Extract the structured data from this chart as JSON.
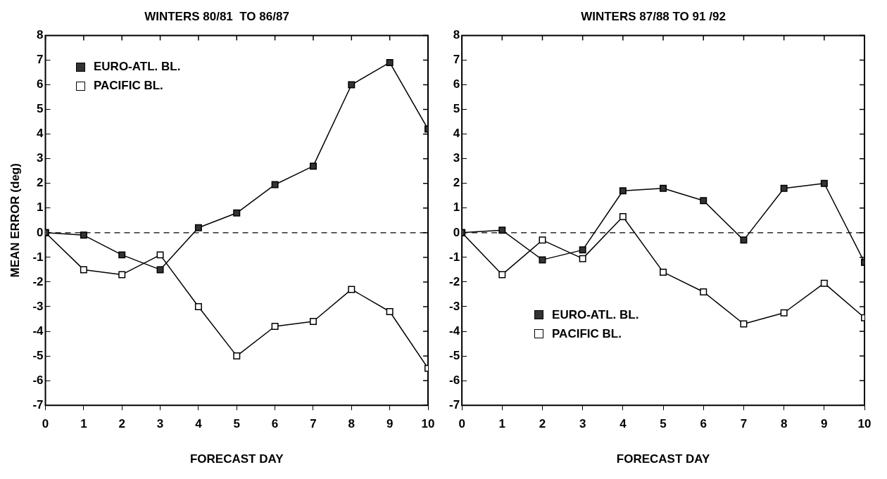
{
  "chart_data": [
    {
      "type": "line",
      "title": "WINTERS 80/81  TO 86/87",
      "xlabel": "FORECAST DAY",
      "ylabel": "MEAN ERROR (deg)",
      "x": [
        0,
        1,
        2,
        3,
        4,
        5,
        6,
        7,
        8,
        9,
        10
      ],
      "xlim": [
        0,
        10
      ],
      "xticks": [
        0,
        1,
        2,
        3,
        4,
        5,
        6,
        7,
        8,
        9,
        10
      ],
      "ylim": [
        -7,
        8
      ],
      "yticks": [
        -7,
        -6,
        -5,
        -4,
        -3,
        -2,
        -1,
        0,
        1,
        2,
        3,
        4,
        5,
        6,
        7,
        8
      ],
      "marker": "square",
      "legend": "top left",
      "grid": false,
      "ref_lines": [
        {
          "axis": "y",
          "value": 0,
          "line_style": "dashed",
          "color": "#000000"
        }
      ],
      "series": [
        {
          "name": "EURO-ATL. BL.",
          "color": "#333333",
          "values": [
            0,
            -0.1,
            -0.9,
            -1.5,
            0.2,
            0.8,
            1.95,
            2.7,
            6.0,
            6.9,
            4.2
          ]
        },
        {
          "name": "PACIFIC BL.",
          "color": "#ffffff",
          "values": [
            0,
            -1.5,
            -1.7,
            -0.9,
            -3.0,
            -5.0,
            -3.8,
            -3.6,
            -2.3,
            -3.2,
            -5.5
          ]
        }
      ]
    },
    {
      "type": "line",
      "title": "WINTERS 87/88 TO 91 /92",
      "xlabel": "FORECAST DAY",
      "x": [
        0,
        1,
        2,
        3,
        4,
        5,
        6,
        7,
        8,
        9,
        10
      ],
      "xlim": [
        0,
        10
      ],
      "xticks": [
        0,
        1,
        2,
        3,
        4,
        5,
        6,
        7,
        8,
        9,
        10
      ],
      "ylim": [
        -7,
        8
      ],
      "yticks": [
        -7,
        -6,
        -5,
        -4,
        -3,
        -2,
        -1,
        0,
        1,
        2,
        3,
        4,
        5,
        6,
        7,
        8
      ],
      "marker": "square",
      "legend": "bottom left",
      "grid": false,
      "ref_lines": [
        {
          "axis": "y",
          "value": 0,
          "line_style": "dashed",
          "color": "#000000"
        }
      ],
      "series": [
        {
          "name": "EURO-ATL. BL.",
          "color": "#333333",
          "values": [
            0,
            0.1,
            -1.1,
            -0.7,
            1.7,
            1.8,
            1.3,
            -0.3,
            1.8,
            2.0,
            -1.2
          ]
        },
        {
          "name": "PACIFIC BL.",
          "color": "#ffffff",
          "values": [
            0,
            -1.7,
            -0.3,
            -1.05,
            0.65,
            -1.6,
            -2.4,
            -3.7,
            -3.25,
            -2.05,
            -3.45
          ]
        }
      ]
    }
  ]
}
